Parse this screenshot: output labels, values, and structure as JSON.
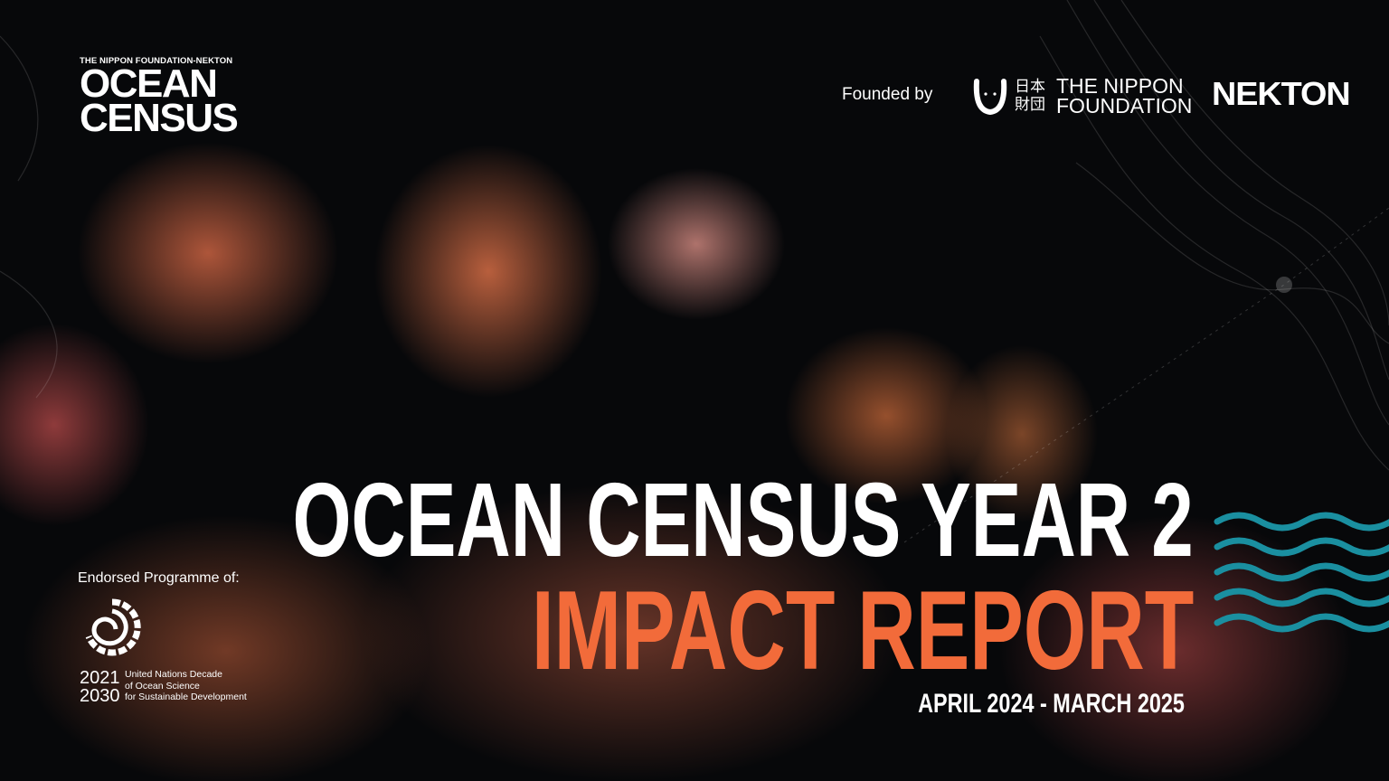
{
  "logo": {
    "small": "THE NIPPON FOUNDATION-NEKTON",
    "line1": "OCEAN",
    "line2": "CENSUS"
  },
  "founded_by": "Founded by",
  "partners": {
    "nippon_kanji": "日本 財団",
    "nippon_line1": "THE NIPPON",
    "nippon_line2": "FOUNDATION",
    "nekton": "NEKTON"
  },
  "title": {
    "line1": "OCEAN CENSUS YEAR 2",
    "line2": "IMPACT REPORT",
    "dates": "APRIL 2024 - MARCH 2025"
  },
  "endorsement": {
    "label": "Endorsed Programme of:",
    "years_top": "2021",
    "years_bottom": "2030",
    "un_line1": "United Nations Decade",
    "un_line2": "of Ocean Science",
    "un_line3": "for Sustainable Development"
  },
  "colors": {
    "accent": "#f26b3a",
    "waves": "#1a8fa0",
    "background": "#07080a"
  }
}
